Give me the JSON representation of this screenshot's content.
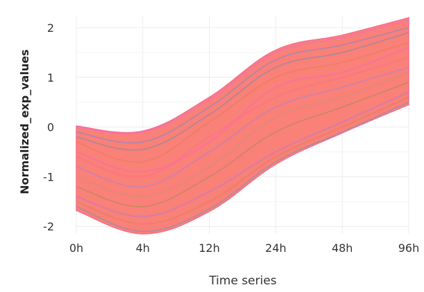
{
  "chart_data": {
    "type": "line",
    "title": "",
    "xlabel": "Time series",
    "ylabel": "Normalized_exp_values",
    "categories": [
      "0h",
      "4h",
      "12h",
      "24h",
      "48h",
      "96h"
    ],
    "ylim": [
      -2.15,
      2.25
    ],
    "yticks": [
      -2,
      -1,
      0,
      1,
      2
    ],
    "ytick_labels": [
      "-2",
      "-1",
      "0",
      "1",
      "2"
    ],
    "grid": true,
    "legend": "none",
    "band": {
      "upper": [
        0.02,
        -0.08,
        0.6,
        1.55,
        1.85,
        2.2
      ],
      "lower": [
        -1.68,
        -2.15,
        -1.7,
        -0.75,
        -0.12,
        0.45
      ]
    },
    "series": [
      {
        "values": [
          -0.2,
          -0.45,
          0.25,
          1.2,
          1.5,
          1.9
        ]
      },
      {
        "values": [
          -1.4,
          -1.8,
          -1.3,
          -0.5,
          0.1,
          0.7
        ]
      },
      {
        "values": [
          -0.6,
          -1.0,
          -0.2,
          0.6,
          1.0,
          1.4
        ]
      },
      {
        "values": [
          -1.0,
          -1.4,
          -0.8,
          0.2,
          0.6,
          1.1
        ]
      },
      {
        "values": [
          0.0,
          -0.1,
          0.55,
          1.5,
          1.8,
          2.15
        ]
      },
      {
        "values": [
          -1.6,
          -2.1,
          -1.65,
          -0.7,
          -0.1,
          0.5
        ]
      },
      {
        "values": [
          -0.3,
          -0.7,
          0.1,
          1.0,
          1.3,
          1.7
        ]
      },
      {
        "values": [
          -0.8,
          -1.2,
          -0.5,
          0.4,
          0.8,
          1.2
        ]
      },
      {
        "values": [
          -1.2,
          -1.6,
          -1.0,
          -0.1,
          0.4,
          0.9
        ]
      },
      {
        "values": [
          -0.5,
          -0.9,
          -0.3,
          0.8,
          1.1,
          1.6
        ]
      },
      {
        "values": [
          -0.1,
          -0.3,
          0.4,
          1.35,
          1.65,
          2.0
        ]
      },
      {
        "values": [
          -1.5,
          -1.95,
          -1.5,
          -0.6,
          0.0,
          0.6
        ]
      }
    ],
    "series_colors": [
      "#00b3a4",
      "#6a8cff",
      "#f8766d",
      "#9fbf3b",
      "#e76bf3",
      "#00bfc4",
      "#d39200",
      "#619cff",
      "#53b400",
      "#ff61c3",
      "#00a9ff",
      "#b79f00"
    ]
  }
}
